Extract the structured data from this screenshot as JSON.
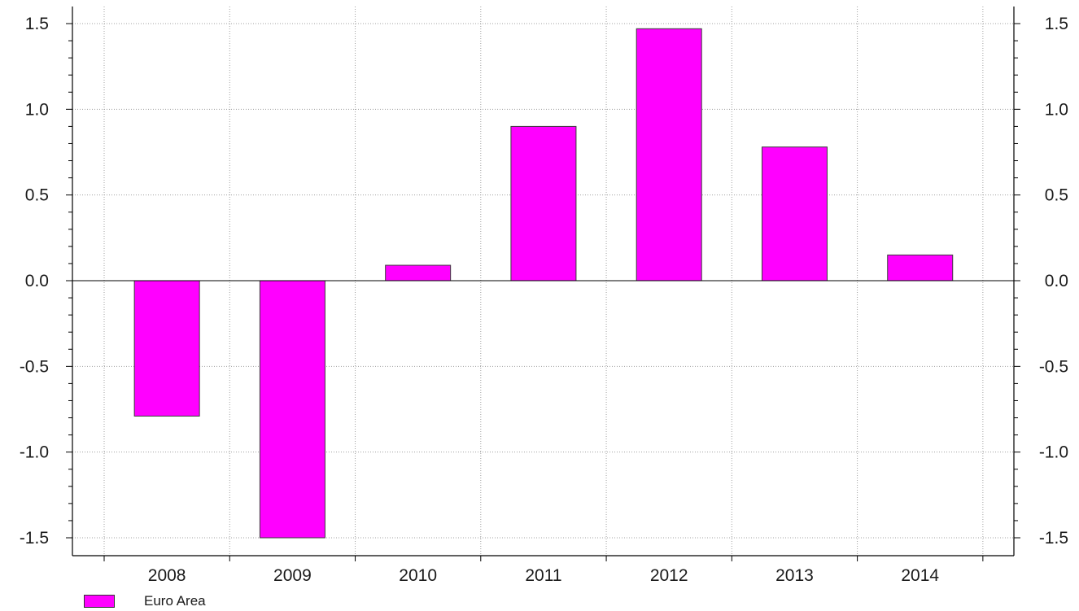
{
  "chart_data": {
    "type": "bar",
    "categories": [
      "2008",
      "2009",
      "2010",
      "2011",
      "2012",
      "2013",
      "2014"
    ],
    "series": [
      {
        "name": "Euro Area",
        "values": [
          -0.79,
          -1.5,
          0.09,
          0.9,
          1.47,
          0.78,
          0.15
        ]
      }
    ],
    "ylim": [
      -1.5,
      1.5
    ],
    "yticks": [
      "1.5",
      "1.0",
      "0.5",
      "0.0",
      "-0.5",
      "-1.0",
      "-1.5"
    ],
    "ytick_values": [
      1.5,
      1.0,
      0.5,
      0.0,
      -0.5,
      -1.0,
      -1.5
    ],
    "xlabel": "",
    "ylabel": "",
    "grid": true,
    "legend_position": "bottom-left",
    "colors": {
      "bar": "#ff00ff",
      "bar_edge": "#3a3a3a",
      "grid": "#a0a0a0",
      "axis": "#000000"
    }
  },
  "legend": {
    "label": "Euro Area"
  }
}
